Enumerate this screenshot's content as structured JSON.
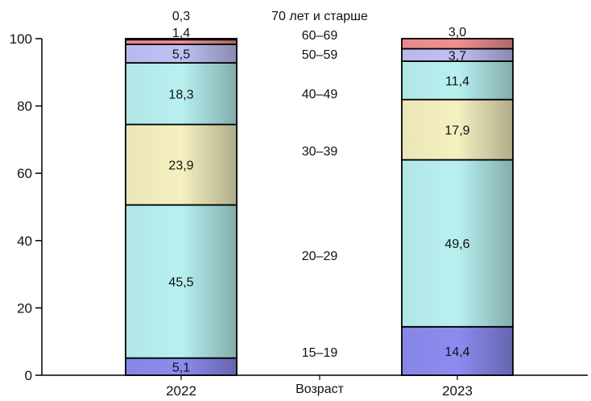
{
  "chart_data": {
    "type": "bar",
    "stacked": true,
    "categories": [
      "2022",
      "2023"
    ],
    "xlabel": "Возраст",
    "ylim": [
      0,
      100
    ],
    "yticks": [
      "0",
      "20",
      "40",
      "60",
      "80",
      "100"
    ],
    "series": [
      {
        "name": "15–19",
        "values": [
          5.1,
          14.4
        ],
        "labels": [
          "5,1",
          "14,4"
        ],
        "color": "#8c8cf0"
      },
      {
        "name": "20–29",
        "values": [
          45.5,
          49.6
        ],
        "labels": [
          "45,5",
          "49,6"
        ],
        "color": "#b8f0f0"
      },
      {
        "name": "30–39",
        "values": [
          23.9,
          17.9
        ],
        "labels": [
          "23,9",
          "17,9"
        ],
        "color": "#f5f0c0"
      },
      {
        "name": "40–49",
        "values": [
          18.3,
          11.4
        ],
        "labels": [
          "18,3",
          "11,4"
        ],
        "color": "#b8f0f0"
      },
      {
        "name": "50–59",
        "values": [
          5.5,
          3.7
        ],
        "labels": [
          "5,5",
          "3,7"
        ],
        "color": "#c0c0f5"
      },
      {
        "name": "60–69",
        "values": [
          1.4,
          3.0
        ],
        "labels": [
          "1,4",
          "3,0"
        ],
        "color": "#f09090"
      },
      {
        "name": "70 лет и старше",
        "values": [
          0.3,
          0.0
        ],
        "labels": [
          "0,3",
          ""
        ],
        "color": "#f09090"
      }
    ]
  }
}
